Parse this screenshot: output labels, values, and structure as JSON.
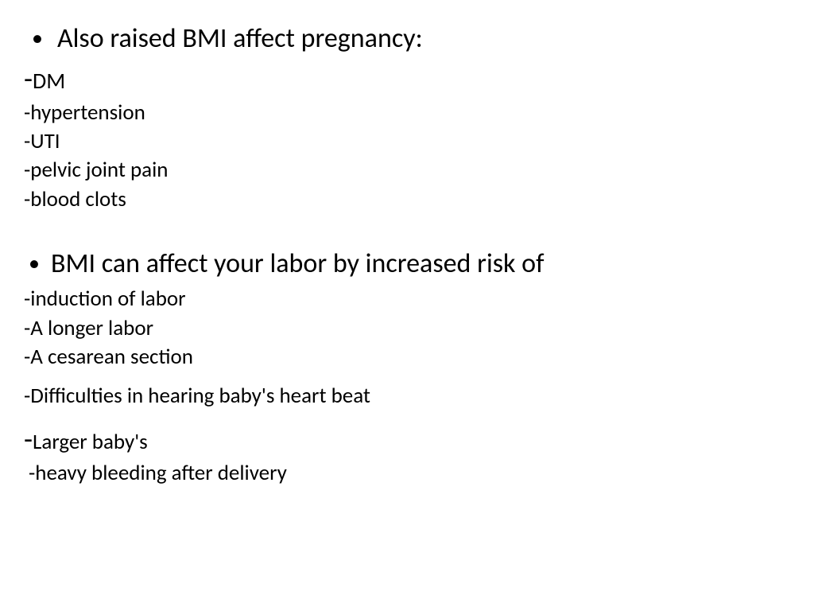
{
  "colors": {
    "background": "#ffffff",
    "text": "#000000"
  },
  "typography": {
    "font_family": "Calibri, Segoe UI, Arial, sans-serif",
    "bullet_fontsize": 34,
    "dash_fontsize": 27,
    "mixed_large_dash_fontsize": 36
  },
  "bullets": {
    "first": "Also raised BMI affect pregnancy:",
    "second": "BMI can affect your labor by increased risk of"
  },
  "section1": {
    "dm_dash": "-",
    "dm_text": "DM",
    "hypertension": "-hypertension",
    "uti": "-UTI",
    "pelvic": "-pelvic joint pain",
    "blood_clots": "-blood clots"
  },
  "section2": {
    "induction": "-induction of labor",
    "longer_labor": "-A longer labor",
    "cesarean": "-A cesarean section",
    "heartbeat": "-Difficulties in hearing baby's heart beat",
    "larger_dash": "-",
    "larger_text": "Larger baby's",
    "heavy_bleeding": "-heavy bleeding after delivery"
  }
}
